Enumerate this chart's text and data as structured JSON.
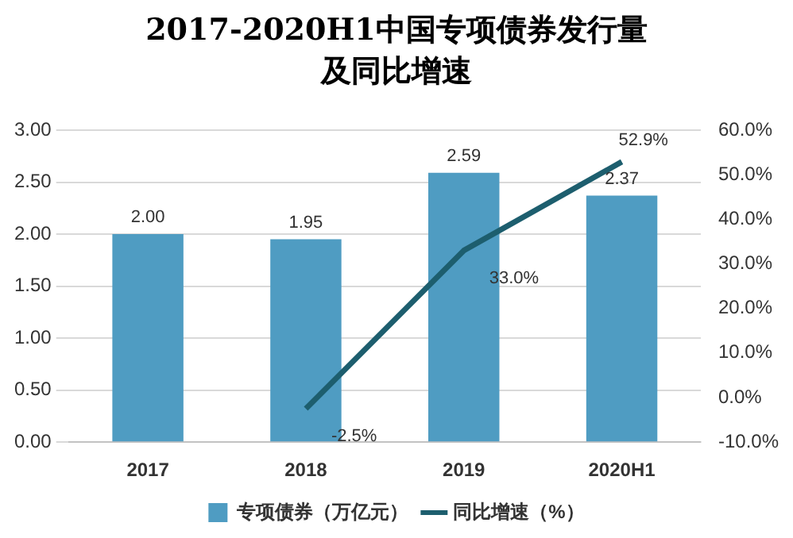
{
  "chart_data": {
    "type": "bar",
    "title": "2017-2020H1中国专项债券发行量及同比增速",
    "categories": [
      "2017",
      "2018",
      "2019",
      "2020H1"
    ],
    "series": [
      {
        "name": "专项债券（万亿元）",
        "color": "#4f9cc2",
        "values": [
          2.0,
          1.95,
          2.59,
          2.37
        ],
        "value_labels": [
          "2.00",
          "1.95",
          "2.59",
          "2.37"
        ]
      },
      {
        "name": "同比增速（%）",
        "type": "line",
        "axis": "y2",
        "color": "#1d5e6e",
        "values": [
          null,
          -2.5,
          33.0,
          52.9
        ],
        "value_labels": [
          null,
          "-2.5%",
          "33.0%",
          "52.9%"
        ]
      }
    ],
    "ylim": [
      0,
      3
    ],
    "yticks": [
      {
        "value": 0,
        "label": "0.00"
      },
      {
        "value": 0.5,
        "label": "0.50"
      },
      {
        "value": 1,
        "label": "1.00"
      },
      {
        "value": 1.5,
        "label": "1.50"
      },
      {
        "value": 2,
        "label": "2.00"
      },
      {
        "value": 2.5,
        "label": "2.50"
      },
      {
        "value": 3,
        "label": "3.00"
      }
    ],
    "y2lim": [
      -10,
      60
    ],
    "y2ticks": [
      {
        "value": -10,
        "label": "-10.0%"
      },
      {
        "value": 0,
        "label": "0.0%"
      },
      {
        "value": 10,
        "label": "10.0%"
      },
      {
        "value": 20,
        "label": "20.0%"
      },
      {
        "value": 30,
        "label": "30.0%"
      },
      {
        "value": 40,
        "label": "40.0%"
      },
      {
        "value": 50,
        "label": "50.0%"
      },
      {
        "value": 60,
        "label": "60.0%"
      }
    ],
    "grid": "y",
    "legend": "bottom",
    "marker": "none",
    "line_style": "solid"
  }
}
